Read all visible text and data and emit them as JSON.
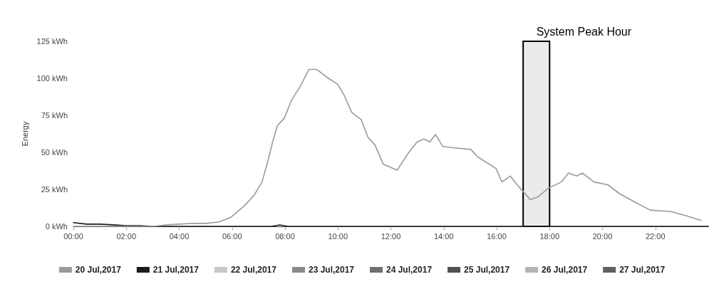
{
  "chart_data": {
    "type": "line",
    "ylabel": "Energy",
    "xlim": [
      0,
      24
    ],
    "xticks": [
      {
        "value": 0,
        "label": "00:00"
      },
      {
        "value": 2,
        "label": "02:00"
      },
      {
        "value": 4,
        "label": "04:00"
      },
      {
        "value": 6,
        "label": "06:00"
      },
      {
        "value": 8,
        "label": "08:00"
      },
      {
        "value": 10,
        "label": "10:00"
      },
      {
        "value": 12,
        "label": "12:00"
      },
      {
        "value": 14,
        "label": "14:00"
      },
      {
        "value": 16,
        "label": "16:00"
      },
      {
        "value": 18,
        "label": "18:00"
      },
      {
        "value": 20,
        "label": "20:00"
      },
      {
        "value": 22,
        "label": "22:00"
      }
    ],
    "ylim": [
      0,
      125
    ],
    "yticks": [
      {
        "value": 0,
        "label": "0 kWh"
      },
      {
        "value": 25,
        "label": "25 kWh"
      },
      {
        "value": 50,
        "label": "50 kWh"
      },
      {
        "value": 75,
        "label": "75 kWh"
      },
      {
        "value": 100,
        "label": "100 kWh"
      },
      {
        "value": 125,
        "label": "125 kWh"
      }
    ],
    "grid": false,
    "legend": "bottom",
    "marker": "none",
    "line_style": "solid",
    "bands": [
      {
        "axis": "x",
        "from": 17,
        "to": 18,
        "label": "System Peak Hour",
        "color": "#000000"
      }
    ],
    "series": [
      {
        "name": "20 Jul,2017",
        "color": "#9a9a9a",
        "x": [
          0,
          3,
          3.5,
          4,
          4.5,
          5,
          5.5,
          5.94,
          6.47,
          6.83,
          7.13,
          7.35,
          7.53,
          7.71,
          7.97,
          8.24,
          8.59,
          8.9,
          9.2,
          9.64,
          9.99,
          10.25,
          10.52,
          10.88,
          11.14,
          11.4,
          11.71,
          12.24,
          12.64,
          12.99,
          13.25,
          13.47,
          13.69,
          13.96,
          14.4,
          15.02,
          15.28,
          15.98,
          16.2,
          16.51,
          16.82,
          17.13,
          17.26,
          17.57,
          17.97,
          18.45,
          18.71,
          19.02,
          19.24,
          19.68,
          20.21,
          20.65,
          21.27,
          21.8,
          22.59,
          23.2,
          23.73
        ],
        "values": [
          0,
          0,
          1,
          1.5,
          2,
          2,
          3,
          6,
          14,
          21,
          30,
          44,
          57,
          68,
          73,
          85,
          95,
          106,
          106,
          100,
          96,
          88,
          77,
          72,
          60,
          55,
          42,
          38,
          49,
          57,
          59,
          57,
          62,
          54,
          53,
          52,
          47,
          39,
          30,
          34,
          27,
          21,
          18,
          20,
          26,
          30,
          36,
          34,
          36,
          30,
          28,
          22,
          16,
          11,
          10,
          7,
          4
        ]
      },
      {
        "name": "21 Jul,2017",
        "color": "#1a1a1a",
        "x": [
          0,
          0.5,
          1,
          1.5,
          2,
          2.5,
          3,
          7.5,
          7.8,
          8.1,
          24
        ],
        "values": [
          2.5,
          1.5,
          1.5,
          1,
          0.5,
          0.5,
          0,
          0,
          1,
          0,
          0
        ]
      },
      {
        "name": "22 Jul,2017",
        "color": "#c8c8c8"
      },
      {
        "name": "23 Jul,2017",
        "color": "#8a8a8a"
      },
      {
        "name": "24 Jul,2017",
        "color": "#707070"
      },
      {
        "name": "25 Jul,2017",
        "color": "#505050"
      },
      {
        "name": "26 Jul,2017",
        "color": "#b4b4b4"
      },
      {
        "name": "27 Jul,2017",
        "color": "#606060"
      }
    ]
  }
}
